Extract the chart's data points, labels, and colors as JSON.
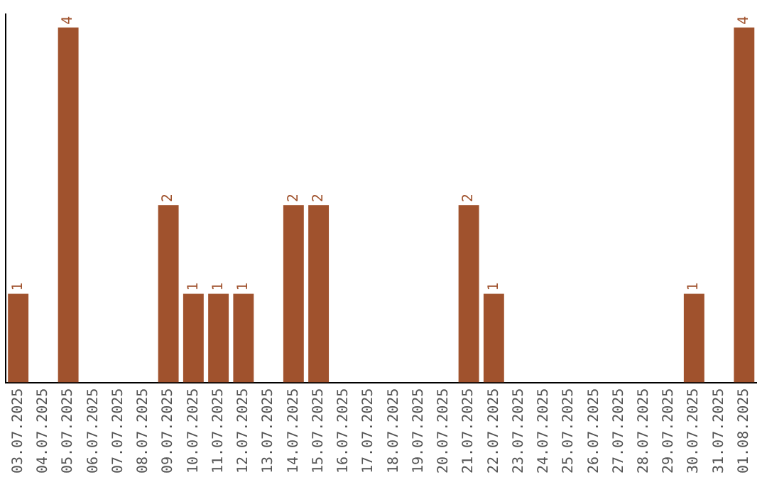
{
  "chart_data": {
    "type": "bar",
    "categories": [
      "03.07.2025",
      "04.07.2025",
      "05.07.2025",
      "06.07.2025",
      "07.07.2025",
      "08.07.2025",
      "09.07.2025",
      "10.07.2025",
      "11.07.2025",
      "12.07.2025",
      "13.07.2025",
      "14.07.2025",
      "15.07.2025",
      "16.07.2025",
      "17.07.2025",
      "18.07.2025",
      "19.07.2025",
      "20.07.2025",
      "21.07.2025",
      "22.07.2025",
      "23.07.2025",
      "24.07.2025",
      "25.07.2025",
      "26.07.2025",
      "27.07.2025",
      "28.07.2025",
      "29.07.2025",
      "30.07.2025",
      "31.07.2025",
      "01.08.2025"
    ],
    "values": [
      1,
      0,
      4,
      0,
      0,
      0,
      2,
      1,
      1,
      1,
      0,
      2,
      2,
      0,
      0,
      0,
      0,
      0,
      2,
      1,
      0,
      0,
      0,
      0,
      0,
      0,
      0,
      1,
      0,
      4
    ],
    "value_labels": [
      "1",
      null,
      "4",
      null,
      null,
      null,
      "2",
      "1",
      "1",
      "1",
      null,
      "2",
      "2",
      null,
      null,
      null,
      null,
      null,
      "2",
      "1",
      null,
      null,
      null,
      null,
      null,
      null,
      null,
      "1",
      null,
      "4"
    ],
    "color": "#a0522d",
    "ylim": [
      0,
      4.15
    ],
    "tick_labels": "x",
    "grid": false,
    "legend": false
  }
}
